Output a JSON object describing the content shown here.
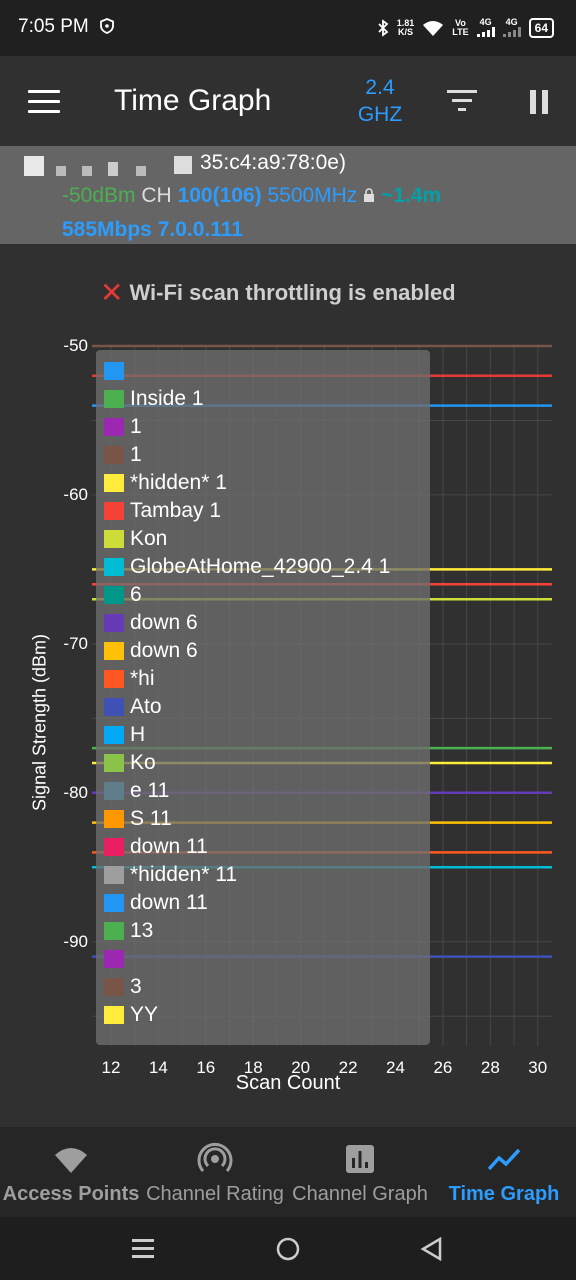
{
  "status_bar": {
    "time": "7:05 PM",
    "net_speed_value": "1.81",
    "net_speed_unit": "K/S",
    "volte_top": "Vo",
    "volte_bottom": "LTE",
    "sim1": "4G",
    "sim2": "4G",
    "battery": "64"
  },
  "app_bar": {
    "title": "Time Graph",
    "band_line1": "2.4",
    "band_line2": "GHZ"
  },
  "connection": {
    "bssid_visible": "35:c4:a9:78:0e)",
    "signal": "-50dBm",
    "ch_label": "CH",
    "channel": "100(106)",
    "frequency": "5500MHz",
    "distance": "~1.4m",
    "speed": "585Mbps",
    "ip": "7.0.0.111"
  },
  "warning": {
    "text": "Wi-Fi scan throttling is enabled"
  },
  "chart_data": {
    "type": "line",
    "xlabel": "Scan Count",
    "ylabel": "Signal Strength (dBm)",
    "x_ticks": [
      "12",
      "14",
      "16",
      "18",
      "20",
      "22",
      "24",
      "26",
      "28",
      "30"
    ],
    "y_ticks": [
      "-50",
      "-60",
      "-70",
      "-80",
      "-90"
    ],
    "xlim": [
      11.2,
      30.6
    ],
    "ylim": [
      -97,
      -50
    ],
    "grid": true,
    "legend_position": "top-left",
    "series": [
      {
        "name": "Inside 1",
        "color": "#2196f3",
        "value": -54
      },
      {
        "name": "*hidden* 1",
        "color": "#ffeb3b",
        "value": -65
      },
      {
        "name": "Tambay 1",
        "color": "#f44336",
        "value": -66
      },
      {
        "name": "GlobeAtHome_42900_2.4 1",
        "color": "#00bcd4",
        "value": -85
      },
      {
        "name": "down 6",
        "color": "#673ab7",
        "value": -80
      },
      {
        "name": "down 6",
        "color": "#ffc107",
        "value": -82
      },
      {
        "name": "down 11",
        "color": "#e91e63",
        "value": null
      },
      {
        "name": "*hidden* 11",
        "color": "#9e9e9e",
        "value": null
      },
      {
        "name": "down 11",
        "color": "#2196f3",
        "value": null
      },
      {
        "name": "13",
        "color": "#4caf50",
        "value": -77
      }
    ],
    "extra_lines": [
      {
        "color": "#795548",
        "value": -50
      },
      {
        "color": "#e53935",
        "value": -52
      },
      {
        "color": "#cddc39",
        "value": -67
      },
      {
        "color": "#ffeb3b",
        "value": -78
      },
      {
        "color": "#ff5722",
        "value": -84
      },
      {
        "color": "#3f51b5",
        "value": -91
      }
    ]
  },
  "legend": {
    "items": [
      {
        "color": "#2196f3",
        "text": ""
      },
      {
        "color": "#4caf50",
        "text": "Inside 1"
      },
      {
        "color": "#9c27b0",
        "text": "1"
      },
      {
        "color": "#795548",
        "text": "1"
      },
      {
        "color": "#ffeb3b",
        "text": "*hidden* 1"
      },
      {
        "color": "#f44336",
        "text": "Tambay 1"
      },
      {
        "color": "#cddc39",
        "text": "Kon"
      },
      {
        "color": "#00bcd4",
        "text": "GlobeAtHome_42900_2.4 1"
      },
      {
        "color": "#009688",
        "text": "6"
      },
      {
        "color": "#673ab7",
        "text": "down 6"
      },
      {
        "color": "#ffc107",
        "text": "down 6"
      },
      {
        "color": "#ff5722",
        "text": "*hi"
      },
      {
        "color": "#3f51b5",
        "text": "Ato"
      },
      {
        "color": "#03a9f4",
        "text": "H"
      },
      {
        "color": "#8bc34a",
        "text": "Ko"
      },
      {
        "color": "#607d8b",
        "text": "e 11"
      },
      {
        "color": "#ff9800",
        "text": "S 11"
      },
      {
        "color": "#e91e63",
        "text": "down 11"
      },
      {
        "color": "#9e9e9e",
        "text": "*hidden* 11"
      },
      {
        "color": "#2196f3",
        "text": "down 11"
      },
      {
        "color": "#4caf50",
        "text": "13"
      },
      {
        "color": "#9c27b0",
        "text": ""
      },
      {
        "color": "#795548",
        "text": "3"
      },
      {
        "color": "#ffeb3b",
        "text": "YY"
      }
    ]
  },
  "bottom_nav": {
    "tabs": [
      {
        "label": "Access Points",
        "active": false
      },
      {
        "label": "Channel Rating",
        "active": false
      },
      {
        "label": "Channel Graph",
        "active": false
      },
      {
        "label": "Time Graph",
        "active": true
      }
    ]
  },
  "colors": {
    "accent": "#2d9cff",
    "inactive_tab": "#9e9e9e"
  }
}
